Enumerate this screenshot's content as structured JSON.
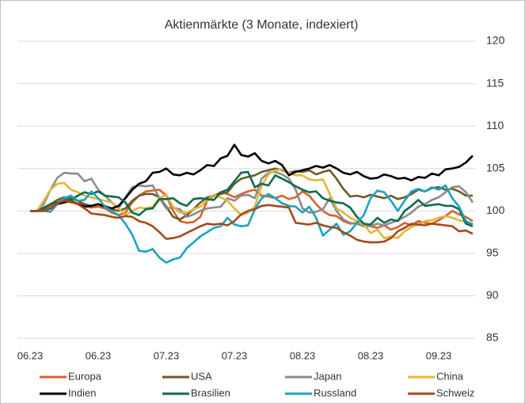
{
  "chart_data": {
    "type": "line",
    "title": "Aktienmärkte (3 Monate, indexiert)",
    "categories": [
      "06.23",
      null,
      null,
      null,
      null,
      null,
      null,
      null,
      null,
      null,
      "06.23",
      null,
      null,
      null,
      null,
      null,
      null,
      null,
      null,
      null,
      "07.23",
      null,
      null,
      null,
      null,
      null,
      null,
      null,
      null,
      null,
      "07.23",
      null,
      null,
      null,
      null,
      null,
      null,
      null,
      null,
      null,
      "08.23",
      null,
      null,
      null,
      null,
      null,
      null,
      null,
      null,
      null,
      "08.23",
      null,
      null,
      null,
      null,
      null,
      null,
      null,
      null,
      null,
      "09.23",
      null,
      null,
      null,
      null,
      null
    ],
    "ylim": [
      85,
      120
    ],
    "yticks": [
      85,
      90,
      95,
      100,
      105,
      110,
      115,
      120
    ],
    "grid": true,
    "y_axis_side": "right",
    "legend": "bottom",
    "series": [
      {
        "name": "Europa",
        "color": "#d9622b",
        "values": [
          100,
          100,
          100.2,
          100.6,
          101,
          101.2,
          101,
          100.9,
          100.6,
          100.4,
          100.5,
          100.3,
          99.8,
          99.5,
          99.8,
          101,
          101.8,
          102.3,
          102.4,
          102.5,
          101.8,
          100,
          98.8,
          98.6,
          98.7,
          99.3,
          101.2,
          101.8,
          102.2,
          102,
          101.6,
          102,
          102.3,
          102.5,
          101.8,
          101.7,
          101.5,
          101.8,
          101.4,
          101.6,
          102.3,
          101.8,
          100.8,
          100,
          99.5,
          99.4,
          98.8,
          98.5,
          98.6,
          98.3,
          98.2,
          98,
          98.3,
          97.8,
          98.1,
          98.6,
          98.3,
          98.8,
          98.6,
          98.5,
          98.9,
          99.4,
          100,
          99.6,
          99.3,
          98.8
        ]
      },
      {
        "name": "USA",
        "color": "#6b5a2a",
        "values": [
          100,
          100,
          100.4,
          100.8,
          101.3,
          101.6,
          101.5,
          101.2,
          100.8,
          100.6,
          100.8,
          100.6,
          100.2,
          100,
          100.3,
          101.2,
          101.8,
          102,
          102,
          101.6,
          100.5,
          99.3,
          99,
          99.5,
          100.2,
          101,
          101.6,
          101.8,
          102,
          102.2,
          103.2,
          103.8,
          104,
          104.2,
          104.6,
          104.8,
          105,
          104.8,
          104.5,
          104.7,
          104.6,
          104.8,
          104.3,
          104.6,
          104.8,
          103.8,
          102.6,
          101.7,
          101.8,
          101.6,
          101.9,
          101.7,
          101.5,
          101.8,
          101.4,
          101.6,
          102,
          102.5,
          102.3,
          102.7,
          102.8,
          102.5,
          102.6,
          102.3,
          101.8,
          101.8
        ]
      },
      {
        "name": "Japan",
        "color": "#8c8c8c",
        "values": [
          100,
          100,
          100.8,
          102.5,
          103.9,
          104.5,
          104.4,
          104.4,
          103.5,
          103.8,
          102.5,
          101.8,
          101,
          100.3,
          101.6,
          102.8,
          103,
          102.9,
          103,
          101.5,
          100.3,
          100.4,
          100.2,
          99.3,
          99.6,
          100,
          100.3,
          100.4,
          100.5,
          101.5,
          101.2,
          101.8,
          101.9,
          101.5,
          103.8,
          104.5,
          104.6,
          104.3,
          103.8,
          102.5,
          100.3,
          99.8,
          99.9,
          100.2,
          101.5,
          100,
          99,
          98.6,
          98.5,
          98.2,
          98.2,
          98.5,
          98.3,
          98.6,
          98.9,
          99.3,
          99.8,
          100.5,
          100.8,
          101.3,
          101.6,
          102.2,
          102.8,
          102.9,
          102.2,
          101
        ]
      },
      {
        "name": "China",
        "color": "#e3b735",
        "values": [
          100,
          100,
          101.2,
          102.5,
          103.2,
          103.3,
          102.5,
          102.2,
          101.8,
          101.6,
          101.4,
          101.2,
          101,
          100.3,
          99.5,
          100,
          100.4,
          100.3,
          100.5,
          101.5,
          101.9,
          100.5,
          99.8,
          99.8,
          100.2,
          100.5,
          101.3,
          101.9,
          101.6,
          101.2,
          100.3,
          99.5,
          99.8,
          100.5,
          103,
          104.3,
          104.8,
          104.9,
          104.5,
          104.2,
          104.2,
          103.7,
          103.6,
          103.7,
          102,
          100.3,
          99.8,
          99.2,
          98.8,
          98.4,
          97.4,
          97.8,
          96.8,
          97,
          96.8,
          97.6,
          98.1,
          98.4,
          98.8,
          98.9,
          99.2,
          99.4,
          99.2,
          98.9,
          98.7,
          98.5
        ]
      },
      {
        "name": "Indien",
        "color": "#000000",
        "values": [
          100,
          100,
          100,
          100.3,
          100.8,
          101,
          101.2,
          100.8,
          100.5,
          100.6,
          100.8,
          100.5,
          100.3,
          100.6,
          101.5,
          102.5,
          103.2,
          103.5,
          104.5,
          104.6,
          105,
          104.3,
          104.2,
          104.5,
          104.3,
          104.8,
          105.4,
          105.3,
          106.2,
          106.5,
          107.8,
          106.6,
          106.4,
          106.8,
          105.9,
          105.6,
          105.9,
          105.4,
          104.2,
          104.6,
          104.8,
          105,
          105.3,
          105.1,
          105.4,
          105,
          104.5,
          104.3,
          104.6,
          104.1,
          103.8,
          103.9,
          104.3,
          104.1,
          103.8,
          103.9,
          103.6,
          104,
          103.9,
          104.4,
          104.2,
          104.9,
          105,
          105.2,
          105.7,
          106.5
        ]
      },
      {
        "name": "Brasilien",
        "color": "#0d6b50",
        "values": [
          100,
          100,
          100.3,
          100.8,
          101,
          101.3,
          101.3,
          101.8,
          102.2,
          102,
          102.3,
          101.8,
          101.7,
          101.6,
          101,
          99.8,
          99.5,
          100.2,
          100.3,
          101.4,
          101.4,
          101.5,
          100.9,
          100.6,
          101.4,
          101.5,
          101.4,
          101.3,
          102.2,
          102.5,
          103.5,
          104.5,
          104.6,
          102.8,
          103.2,
          103,
          104.2,
          103.8,
          103.4,
          102.9,
          102.5,
          102.2,
          102.3,
          101.5,
          101.2,
          101,
          100.9,
          100.4,
          99.3,
          98.5,
          98.4,
          99.2,
          98.6,
          99,
          98.8,
          100,
          100.6,
          101.3,
          100.6,
          100.7,
          100.8,
          100.6,
          100.6,
          100.2,
          98.5,
          98.2
        ]
      },
      {
        "name": "Russland",
        "color": "#1ba3c1",
        "values": [
          100,
          100,
          100,
          99.9,
          100.8,
          101.5,
          101.8,
          101.2,
          101.3,
          102.3,
          101.5,
          100.5,
          100,
          99.5,
          98.5,
          97.2,
          95.3,
          95.2,
          95.5,
          94.5,
          93.9,
          94.3,
          94.5,
          95.6,
          96.3,
          97,
          97.5,
          98,
          98.2,
          99.2,
          98.4,
          98.2,
          98.3,
          100.2,
          101.5,
          102,
          101.5,
          100.9,
          100.6,
          100.5,
          99.8,
          100.5,
          99.2,
          97.1,
          97.8,
          98.5,
          97.2,
          97.6,
          98.6,
          99.5,
          101.5,
          102.4,
          102.2,
          101.2,
          100,
          101.2,
          102.3,
          102.6,
          102.3,
          102.8,
          102.5,
          103,
          101.5,
          100.5,
          98.8,
          98.4
        ]
      },
      {
        "name": "Schweiz",
        "color": "#a8481b",
        "values": [
          100,
          100,
          100,
          100.3,
          100.9,
          101.2,
          101.1,
          100.8,
          100.3,
          99.7,
          99.6,
          99.5,
          99.3,
          99.2,
          99.4,
          99.3,
          98.8,
          98.6,
          98.2,
          97.5,
          96.7,
          96.8,
          97,
          97.4,
          97.8,
          98.2,
          98.5,
          98.4,
          98.5,
          98.3,
          98.8,
          99.6,
          100,
          100.2,
          100.6,
          100.7,
          100.6,
          100.5,
          100.4,
          98.6,
          98.5,
          98.4,
          98.6,
          98.3,
          98.1,
          98,
          97.5,
          97.1,
          96.6,
          96.4,
          96.3,
          96.3,
          96.4,
          96.8,
          97.6,
          98,
          98.5,
          98.4,
          98.3,
          98.5,
          98.4,
          98.3,
          98.2,
          97.6,
          97.7,
          97.3
        ]
      }
    ]
  }
}
